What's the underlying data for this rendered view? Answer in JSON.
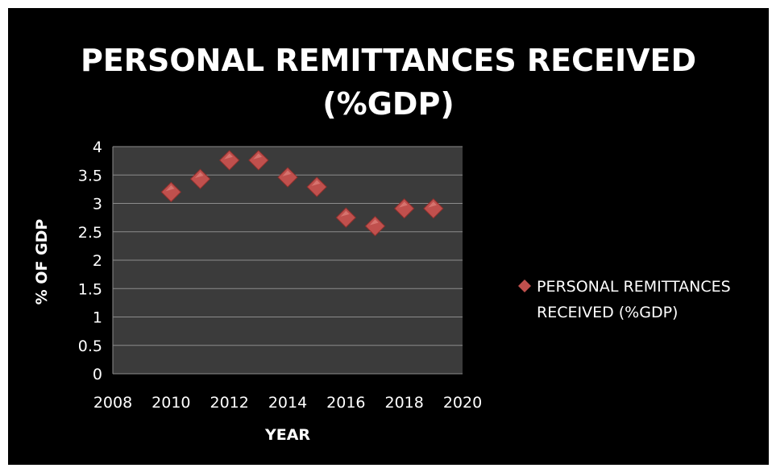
{
  "chart_data": {
    "type": "scatter",
    "title_lines": [
      "PERSONAL REMITTANCES RECEIVED",
      "(%GDP)"
    ],
    "xlabel": "YEAR",
    "ylabel": "% OF GDP",
    "xlim": [
      2008,
      2020
    ],
    "ylim": [
      0,
      4
    ],
    "xticks": [
      "2008",
      "2010",
      "2012",
      "2014",
      "2016",
      "2018",
      "2020"
    ],
    "yticks": [
      "0",
      "0.5",
      "1",
      "1.5",
      "2",
      "2.5",
      "3",
      "3.5",
      "4"
    ],
    "grid": true,
    "legend_position": "right",
    "series": [
      {
        "name": "PERSONAL REMITTANCES RECEIVED (%GDP)",
        "legend_lines": [
          "PERSONAL REMITTANCES",
          "RECEIVED (%GDP)"
        ],
        "marker": "diamond",
        "color": "#c0504d",
        "x": [
          2010,
          2011,
          2012,
          2013,
          2014,
          2015,
          2016,
          2017,
          2018,
          2019
        ],
        "y": [
          3.2,
          3.43,
          3.76,
          3.76,
          3.46,
          3.29,
          2.75,
          2.6,
          2.91,
          2.91
        ]
      }
    ],
    "colors": {
      "background": "#000000",
      "plot_area": "#3b3b3b",
      "gridline": "#8c8c8c",
      "text": "#ffffff"
    }
  }
}
